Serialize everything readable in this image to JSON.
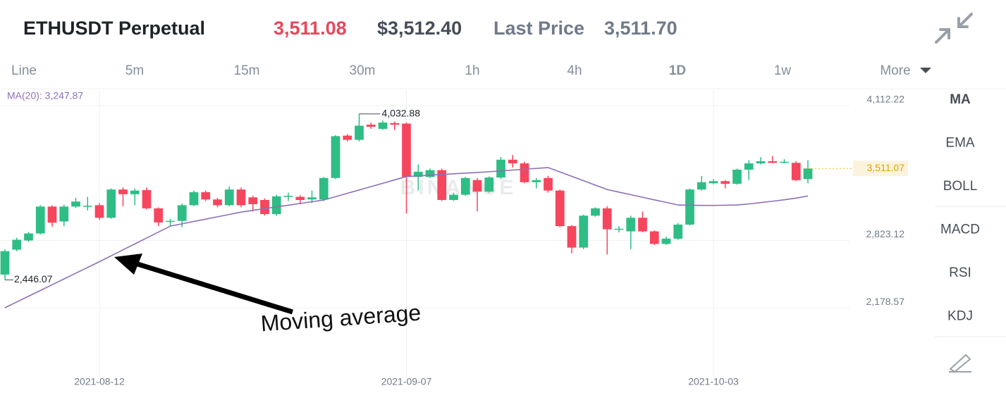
{
  "header": {
    "symbol": "ETHUSDT Perpetual",
    "price": "3,511.08",
    "mark_price": "$3,512.40",
    "last_price_label": "Last Price",
    "last_price": "3,511.70"
  },
  "intervals": [
    "Line",
    "5m",
    "15m",
    "30m",
    "1h",
    "4h",
    "1D",
    "1w",
    "More"
  ],
  "indicators": [
    "MA",
    "EMA",
    "BOLL",
    "MACD",
    "RSI",
    "KDJ"
  ],
  "chart_data": {
    "type": "candlestick",
    "ma_label": "MA(20): 3,247.87",
    "watermark": "BINANCE",
    "annotation": "Moving average",
    "up_color": "#2ebd85",
    "down_color": "#f6465d",
    "ma_color": "#8e6fb8",
    "ylim": [
      1500,
      4260
    ],
    "yticks": [
      {
        "value": 4112.22,
        "label": "4,112.22"
      },
      {
        "value": 2823.12,
        "label": "2,823.12"
      },
      {
        "value": 2178.57,
        "label": "2,178.57"
      }
    ],
    "xticks": [
      "2021-08-12",
      "2021-09-07",
      "2021-10-03"
    ],
    "grid": true,
    "max_label": {
      "value": 4032.88,
      "label": "4,032.88"
    },
    "min_label": {
      "value": 2446.07,
      "label": "2,446.07"
    },
    "last_price_line": {
      "value": 3511.07,
      "label": "3,511.07"
    },
    "x": [
      "2021-08-04",
      "2021-08-05",
      "2021-08-06",
      "2021-08-07",
      "2021-08-08",
      "2021-08-09",
      "2021-08-10",
      "2021-08-11",
      "2021-08-12",
      "2021-08-13",
      "2021-08-14",
      "2021-08-15",
      "2021-08-16",
      "2021-08-17",
      "2021-08-18",
      "2021-08-19",
      "2021-08-20",
      "2021-08-21",
      "2021-08-22",
      "2021-08-23",
      "2021-08-24",
      "2021-08-25",
      "2021-08-26",
      "2021-08-27",
      "2021-08-28",
      "2021-08-29",
      "2021-08-30",
      "2021-08-31",
      "2021-09-01",
      "2021-09-02",
      "2021-09-03",
      "2021-09-04",
      "2021-09-05",
      "2021-09-06",
      "2021-09-07",
      "2021-09-08",
      "2021-09-09",
      "2021-09-10",
      "2021-09-11",
      "2021-09-12",
      "2021-09-13",
      "2021-09-14",
      "2021-09-15",
      "2021-09-16",
      "2021-09-17",
      "2021-09-18",
      "2021-09-19",
      "2021-09-20",
      "2021-09-21",
      "2021-09-22",
      "2021-09-23",
      "2021-09-24",
      "2021-09-25",
      "2021-09-26",
      "2021-09-27",
      "2021-09-28",
      "2021-09-29",
      "2021-09-30",
      "2021-10-01",
      "2021-10-02",
      "2021-10-03",
      "2021-10-04",
      "2021-10-05",
      "2021-10-06",
      "2021-10-07",
      "2021-10-08",
      "2021-10-09",
      "2021-10-10",
      "2021-10-11"
    ],
    "open": [
      2497,
      2735,
      2823,
      2890,
      3147,
      3005,
      3147,
      3150,
      3160,
      3040,
      3310,
      3265,
      3305,
      3130,
      3000,
      3010,
      3160,
      3285,
      3215,
      3160,
      3310,
      3235,
      3210,
      3075,
      3240,
      3240,
      3215,
      3215,
      3420,
      3825,
      3785,
      3930,
      3890,
      3945,
      3940,
      3430,
      3430,
      3495,
      3210,
      3260,
      3400,
      3290,
      3425,
      3595,
      3560,
      3380,
      3420,
      3300,
      2960,
      2755,
      3060,
      3130,
      2925,
      2910,
      3040,
      2910,
      2790,
      2840,
      2975,
      3310,
      3370,
      3390,
      3365,
      3500,
      3560,
      3580,
      3570,
      3565,
      3410
    ],
    "high": [
      2740,
      2850,
      2905,
      3160,
      3160,
      3165,
      3230,
      3240,
      3180,
      3320,
      3330,
      3320,
      3330,
      3140,
      3030,
      3175,
      3300,
      3300,
      3230,
      3340,
      3330,
      3250,
      3225,
      3260,
      3280,
      3255,
      3300,
      3430,
      3830,
      3840,
      4032.88,
      3950,
      3970,
      3960,
      3950,
      3550,
      3510,
      3510,
      3280,
      3430,
      3420,
      3435,
      3620,
      3640,
      3575,
      3420,
      3440,
      3310,
      2970,
      3070,
      3140,
      3150,
      2960,
      3060,
      3100,
      2920,
      2860,
      2990,
      3320,
      3440,
      3410,
      3400,
      3510,
      3590,
      3620,
      3630,
      3600,
      3580,
      3590
    ],
    "low": [
      2446.07,
      2720,
      2810,
      2880,
      2955,
      2960,
      3135,
      3110,
      3020,
      3030,
      3150,
      3160,
      3120,
      2960,
      2960,
      2950,
      3150,
      3200,
      3140,
      3150,
      3140,
      3100,
      3060,
      3060,
      3200,
      3170,
      3180,
      3200,
      3410,
      3770,
      3770,
      3890,
      3880,
      3880,
      3080,
      3300,
      3420,
      3200,
      3200,
      3250,
      3100,
      3280,
      3410,
      3520,
      3370,
      3320,
      3280,
      2950,
      2700,
      2740,
      3050,
      2690,
      2900,
      2740,
      2900,
      2780,
      2780,
      2830,
      2965,
      3300,
      3360,
      3320,
      3355,
      3400,
      3550,
      3560,
      3560,
      3390,
      3370
    ],
    "close": [
      2721,
      2830,
      2890,
      3147,
      2993,
      3147,
      3195,
      3155,
      3040,
      3310,
      3265,
      3300,
      3130,
      2995,
      3010,
      3160,
      3285,
      3215,
      3160,
      3310,
      3160,
      3170,
      3075,
      3245,
      3250,
      3210,
      3235,
      3420,
      3820,
      3785,
      3920,
      3910,
      3950,
      3930,
      3430,
      3480,
      3495,
      3210,
      3260,
      3420,
      3290,
      3425,
      3595,
      3560,
      3380,
      3400,
      3300,
      2960,
      2755,
      3060,
      3130,
      2930,
      2935,
      3040,
      2910,
      2790,
      2840,
      2975,
      3310,
      3380,
      3390,
      3365,
      3500,
      3560,
      3580,
      3565,
      3575,
      3400,
      3511.07
    ],
    "ma": [
      2180,
      2235,
      2290,
      2345,
      2400,
      2455,
      2510,
      2565,
      2620,
      2677,
      2734,
      2790,
      2847,
      2903,
      2960,
      2982,
      3005,
      3027,
      3049,
      3072,
      3094,
      3111,
      3127,
      3144,
      3160,
      3177,
      3193,
      3210,
      3242,
      3274,
      3306,
      3338,
      3370,
      3402,
      3434,
      3441,
      3447,
      3454,
      3460,
      3467,
      3473,
      3480,
      3488,
      3496,
      3504,
      3512,
      3520,
      3478,
      3436,
      3394,
      3352,
      3310,
      3285,
      3261,
      3236,
      3211,
      3187,
      3162,
      3160,
      3158,
      3158,
      3160,
      3162,
      3172,
      3185,
      3198,
      3212,
      3228,
      3247.87
    ]
  }
}
